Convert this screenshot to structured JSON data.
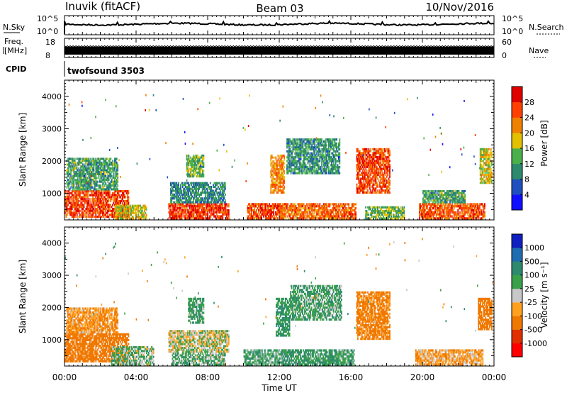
{
  "header": {
    "station": "Inuvik (fitACF)",
    "beam": "Beam 03",
    "date": "10/Nov/2016"
  },
  "labels": {
    "nsky": "N.Sky",
    "nsearch": "N.Search",
    "freq": "Freq.",
    "mhz": "[MHz]",
    "nave": "Nave",
    "cpid": "CPID",
    "cpid_value": "twofsound 3503",
    "ylabel": "Slant Range [km]",
    "xlabel": "Time UT",
    "pow_label": "Power [dB]",
    "vel_label": "Velocity [m s⁻¹]"
  },
  "ticks": {
    "noise_left": [
      "10^5",
      "10^0"
    ],
    "noise_right": [
      "10^5",
      "10^0"
    ],
    "freq_left": [
      "18",
      "8"
    ],
    "freq_right": [
      "60",
      "0"
    ],
    "range": [
      "1000",
      "2000",
      "3000",
      "4000"
    ],
    "time": [
      "00:00",
      "04:00",
      "08:00",
      "12:00",
      "16:00",
      "20:00",
      "00:00"
    ]
  },
  "colorbars": {
    "power": {
      "labels": [
        "4",
        "8",
        "12",
        "16",
        "20",
        "24",
        "28"
      ],
      "colors": [
        "#1010ff",
        "#2050c0",
        "#2d8a6e",
        "#4bb04b",
        "#e3c000",
        "#f08000",
        "#ff4000",
        "#e00000"
      ]
    },
    "velocity": {
      "labels": [
        "1000",
        "500",
        "100",
        "25",
        "-25",
        "-100",
        "-500",
        "-1000"
      ],
      "colors": [
        "#1020c0",
        "#1f6cb0",
        "#2d8a6e",
        "#3aa14a",
        "#c8c8c8",
        "#ffa020",
        "#f07800",
        "#e03000",
        "#ff0000"
      ]
    }
  },
  "chart_data": {
    "type": "heatmap",
    "x_range_hours": [
      0,
      24
    ],
    "range_km": [
      180,
      4500
    ],
    "power_regions": [
      {
        "t0": 0.0,
        "t1": 3.6,
        "r0": 250,
        "r1": 1100,
        "v": 26
      },
      {
        "t0": 0.1,
        "t1": 3.0,
        "r0": 1100,
        "r1": 2100,
        "v": 12
      },
      {
        "t0": 2.8,
        "t1": 4.6,
        "r0": 200,
        "r1": 650,
        "v": 18
      },
      {
        "t0": 5.8,
        "t1": 9.2,
        "r0": 200,
        "r1": 700,
        "v": 27
      },
      {
        "t0": 5.9,
        "t1": 9.0,
        "r0": 700,
        "r1": 1350,
        "v": 10
      },
      {
        "t0": 6.8,
        "t1": 7.8,
        "r0": 1500,
        "r1": 2200,
        "v": 14
      },
      {
        "t0": 10.2,
        "t1": 12.2,
        "r0": 200,
        "r1": 700,
        "v": 26
      },
      {
        "t0": 11.5,
        "t1": 12.3,
        "r0": 1000,
        "r1": 2200,
        "v": 22
      },
      {
        "t0": 12.4,
        "t1": 15.4,
        "r0": 1600,
        "r1": 2700,
        "v": 11
      },
      {
        "t0": 12.0,
        "t1": 16.3,
        "r0": 200,
        "r1": 700,
        "v": 24
      },
      {
        "t0": 16.3,
        "t1": 18.2,
        "r0": 1000,
        "r1": 2400,
        "v": 26
      },
      {
        "t0": 16.8,
        "t1": 19.0,
        "r0": 200,
        "r1": 600,
        "v": 14
      },
      {
        "t0": 19.8,
        "t1": 23.5,
        "r0": 200,
        "r1": 700,
        "v": 25
      },
      {
        "t0": 20.0,
        "t1": 22.4,
        "r0": 700,
        "r1": 1100,
        "v": 12
      },
      {
        "t0": 23.2,
        "t1": 23.9,
        "r0": 1300,
        "r1": 2400,
        "v": 18
      }
    ],
    "velocity_regions": [
      {
        "t0": 0.0,
        "t1": 3.6,
        "r0": 300,
        "r1": 1200,
        "v": -200
      },
      {
        "t0": 0.1,
        "t1": 3.0,
        "r0": 1200,
        "r1": 2000,
        "v": -100
      },
      {
        "t0": 2.6,
        "t1": 5.0,
        "r0": 200,
        "r1": 800,
        "v": 40
      },
      {
        "t0": 5.8,
        "t1": 9.2,
        "r0": 600,
        "r1": 1300,
        "v": 0
      },
      {
        "t0": 6.0,
        "t1": 9.0,
        "r0": 200,
        "r1": 600,
        "v": 60
      },
      {
        "t0": 6.9,
        "t1": 7.8,
        "r0": 1500,
        "r1": 2300,
        "v": 80
      },
      {
        "t0": 10.0,
        "t1": 12.4,
        "r0": 200,
        "r1": 700,
        "v": 90
      },
      {
        "t0": 11.8,
        "t1": 12.6,
        "r0": 1100,
        "r1": 2300,
        "v": 120
      },
      {
        "t0": 12.6,
        "t1": 15.5,
        "r0": 1600,
        "r1": 2700,
        "v": 70
      },
      {
        "t0": 12.2,
        "t1": 16.2,
        "r0": 200,
        "r1": 700,
        "v": 100
      },
      {
        "t0": 16.3,
        "t1": 18.2,
        "r0": 1000,
        "r1": 2500,
        "v": -150
      },
      {
        "t0": 19.6,
        "t1": 23.4,
        "r0": 200,
        "r1": 700,
        "v": -80
      },
      {
        "t0": 23.1,
        "t1": 23.9,
        "r0": 1300,
        "r1": 2300,
        "v": -200
      }
    ]
  }
}
